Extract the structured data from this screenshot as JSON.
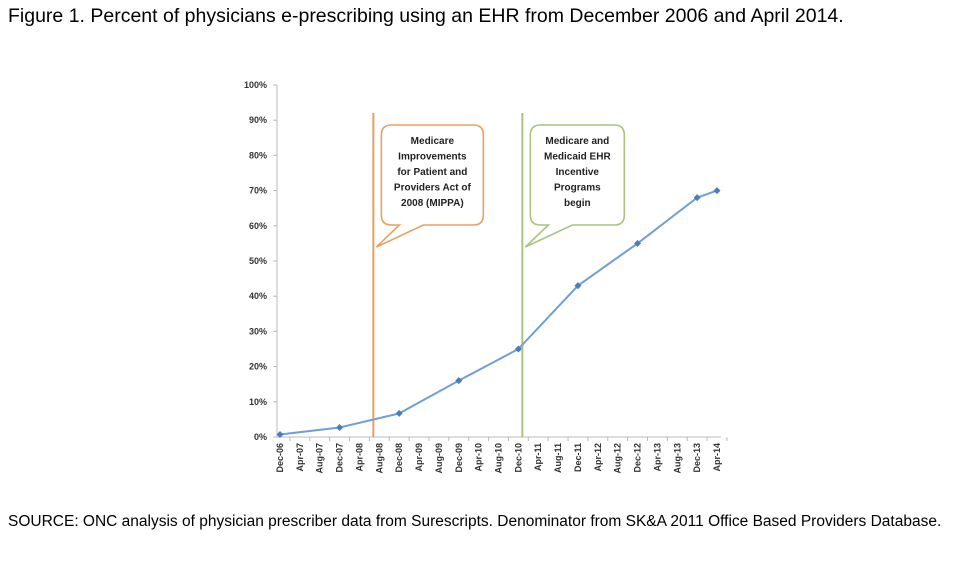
{
  "chart_data": {
    "type": "line",
    "title": "Figure 1. Percent of physicians e-prescribing using an EHR from December 2006 and April 2014.",
    "xlabel": "",
    "ylabel": "",
    "categories": [
      "Dec-06",
      "Apr-07",
      "Aug-07",
      "Dec-07",
      "Apr-08",
      "Aug-08",
      "Dec-08",
      "Apr-09",
      "Aug-09",
      "Dec-09",
      "Apr-10",
      "Aug-10",
      "Dec-10",
      "Apr-11",
      "Aug-11",
      "Dec-11",
      "Apr-12",
      "Aug-12",
      "Dec-12",
      "Apr-13",
      "Aug-13",
      "Dec-13",
      "Apr-14"
    ],
    "series": [
      {
        "x": [
          "Dec-06",
          "Dec-07",
          "Dec-08",
          "Dec-09",
          "Dec-10",
          "Dec-11",
          "Dec-12",
          "Dec-13",
          "Apr-14"
        ],
        "values": [
          0.7,
          2.7,
          6.7,
          16,
          25,
          43,
          55,
          68,
          70
        ],
        "color": "#6f9fd4"
      }
    ],
    "ylim": [
      0,
      100
    ],
    "yticks": [
      "0%",
      "10%",
      "20%",
      "30%",
      "40%",
      "50%",
      "60%",
      "70%",
      "80%",
      "90%",
      "100%"
    ],
    "grid": false,
    "legend": "none",
    "annotations": [
      {
        "x": "Jul-08",
        "color": "#e8a064",
        "text": "Medicare Improvements for Patient and Providers Act of 2008 (MIPPA)",
        "lines": [
          "Medicare",
          "Improvements",
          "for Patient and",
          "Providers Act of",
          "2008 (MIPPA)"
        ]
      },
      {
        "x": "Jan-11",
        "color": "#a9c47f",
        "text": "Medicare and Medicaid EHR Incentive Programs begin",
        "lines": [
          "Medicare and",
          "Medicaid EHR",
          "Incentive",
          "Programs",
          "begin"
        ]
      }
    ],
    "source": "SOURCE: ONC analysis of physician prescriber data from Surescripts. Denominator from SK&A 2011 Office Based Providers Database."
  }
}
